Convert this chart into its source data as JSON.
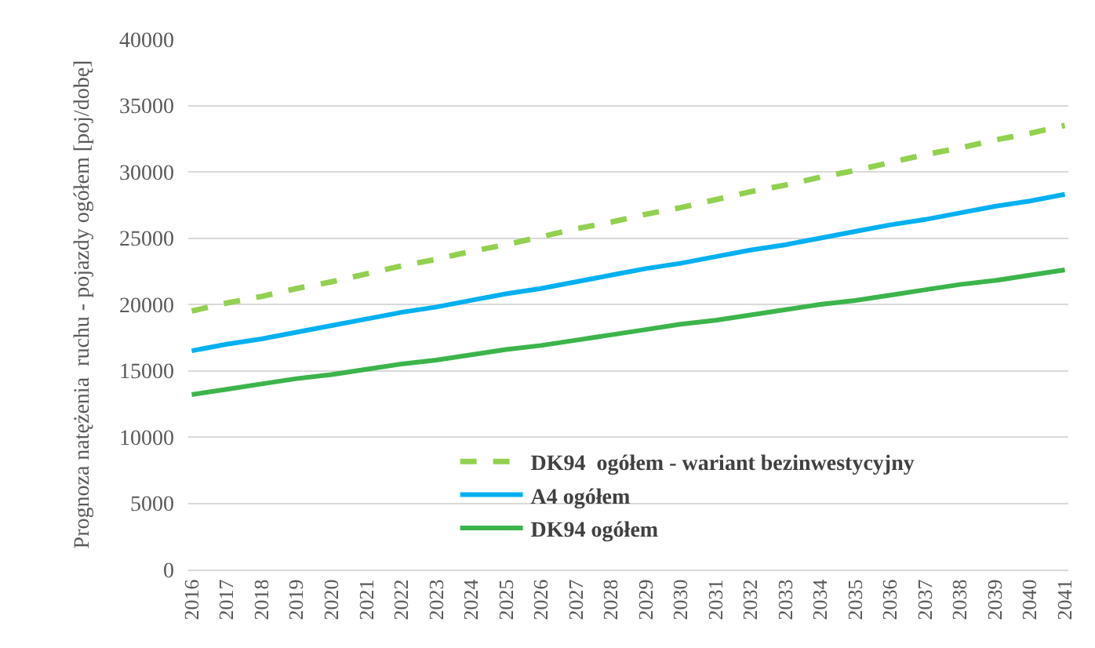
{
  "chart_data": {
    "type": "line",
    "ylabel": "Prognoza natężenia  ruchu - pojazdy ogółem [poj/dobę]",
    "categories": [
      "2016",
      "2017",
      "2018",
      "2019",
      "2020",
      "2021",
      "2022",
      "2023",
      "2024",
      "2025",
      "2026",
      "2027",
      "2028",
      "2029",
      "2030",
      "2031",
      "2032",
      "2033",
      "2034",
      "2035",
      "2036",
      "2037",
      "2038",
      "2039",
      "2040",
      "2041"
    ],
    "series": [
      {
        "name": "DK94  ogółem - wariant bezinwestycyjny",
        "color": "#92d050",
        "line_style": "dashed",
        "values": [
          19500,
          20100,
          20600,
          21200,
          21700,
          22300,
          22900,
          23400,
          24000,
          24500,
          25100,
          25700,
          26200,
          26800,
          27300,
          27900,
          28500,
          29000,
          29600,
          30100,
          30700,
          31300,
          31800,
          32400,
          32900,
          33500
        ]
      },
      {
        "name": "A4 ogółem",
        "color": "#00b0f0",
        "line_style": "solid",
        "values": [
          16500,
          17000,
          17400,
          17900,
          18400,
          18900,
          19400,
          19800,
          20300,
          20800,
          21200,
          21700,
          22200,
          22700,
          23100,
          23600,
          24100,
          24500,
          25000,
          25500,
          26000,
          26400,
          26900,
          27400,
          27800,
          28300
        ]
      },
      {
        "name": "DK94 ogółem",
        "color": "#3cb44b",
        "line_style": "solid",
        "values": [
          13200,
          13600,
          14000,
          14400,
          14700,
          15100,
          15500,
          15800,
          16200,
          16600,
          16900,
          17300,
          17700,
          18100,
          18500,
          18800,
          19200,
          19600,
          20000,
          20300,
          20700,
          21100,
          21500,
          21800,
          22200,
          22600
        ]
      }
    ],
    "ylim": [
      0,
      40000
    ],
    "yticks": [
      0,
      5000,
      10000,
      15000,
      20000,
      25000,
      30000,
      35000,
      40000
    ],
    "grid": "y",
    "legend": "bottom",
    "marker": "none"
  }
}
